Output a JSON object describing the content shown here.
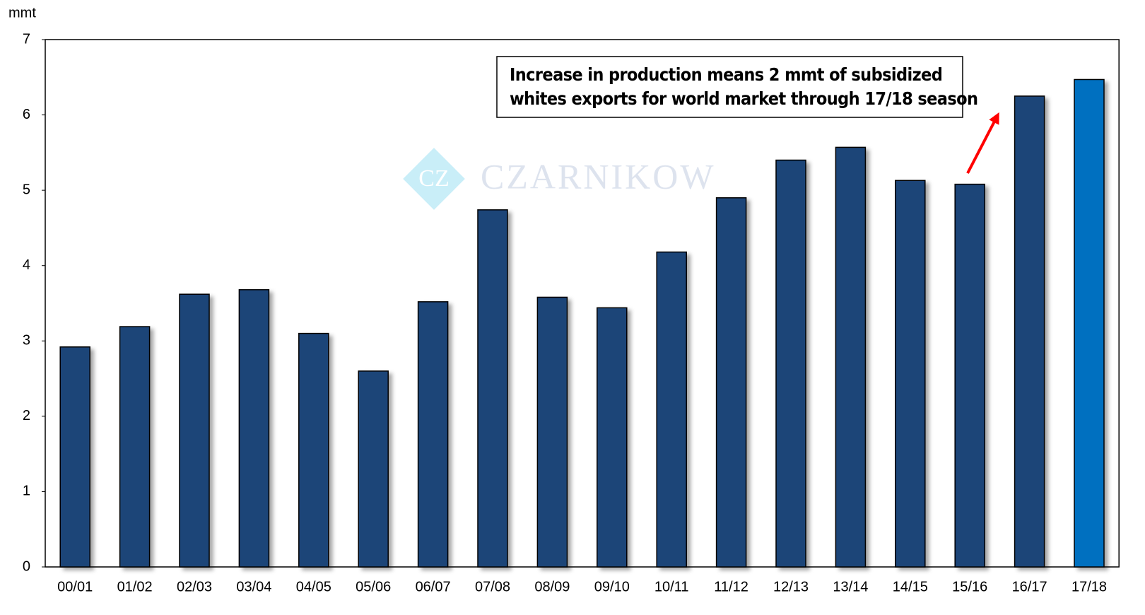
{
  "chart_data": {
    "type": "bar",
    "y_axis_label": "mmt",
    "categories": [
      "00/01",
      "01/02",
      "02/03",
      "03/04",
      "04/05",
      "05/06",
      "06/07",
      "07/08",
      "08/09",
      "09/10",
      "10/11",
      "11/12",
      "12/13",
      "13/14",
      "14/15",
      "15/16",
      "16/17",
      "17/18"
    ],
    "values": [
      2.92,
      3.19,
      3.62,
      3.68,
      3.1,
      2.6,
      3.52,
      4.74,
      3.58,
      3.44,
      4.18,
      4.9,
      5.4,
      5.57,
      5.13,
      5.08,
      6.25,
      6.47
    ],
    "colors": [
      "#1f4478",
      "#1f4478",
      "#1f4478",
      "#1f4478",
      "#1f4478",
      "#1f4478",
      "#1f4478",
      "#1f4478",
      "#1f4478",
      "#1f4478",
      "#1f4478",
      "#1f4478",
      "#1f4478",
      "#1f4478",
      "#1f4478",
      "#1f4478",
      "#1f4478",
      "#0070c0"
    ],
    "ylim": [
      0,
      7
    ],
    "yticks": [
      0,
      1,
      2,
      3,
      4,
      5,
      6,
      7
    ],
    "grid": false,
    "annotation": [
      "Increase in production means 2 mmt of subsidized",
      "whites exports for world market through 17/18 season"
    ],
    "watermark": {
      "logo": "CZ",
      "text": "CZARNIKOW"
    }
  }
}
